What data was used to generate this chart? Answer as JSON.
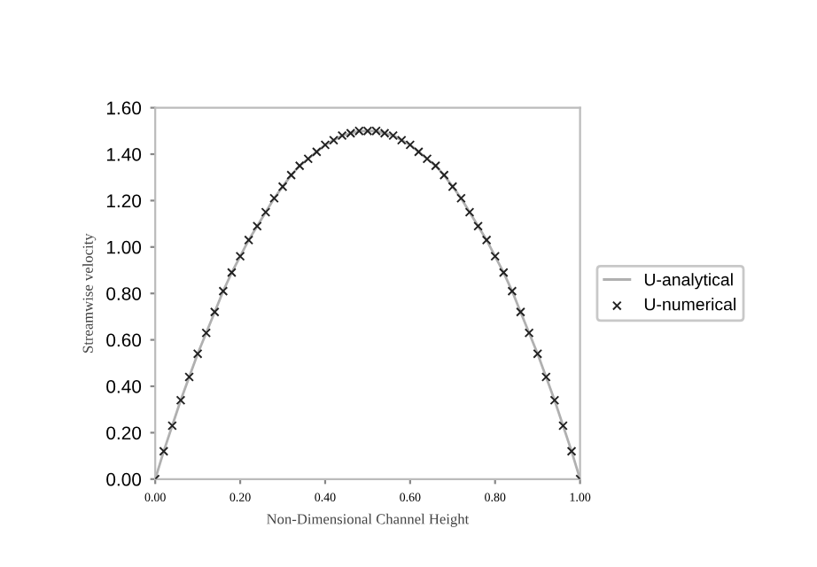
{
  "chart_data": {
    "type": "line",
    "xlabel": "Non-Dimensional Channel Height",
    "ylabel": "Streamwise velocity",
    "x": [
      0,
      0.02,
      0.04,
      0.06,
      0.08,
      0.1,
      0.12,
      0.14,
      0.16,
      0.18,
      0.2,
      0.22,
      0.24,
      0.26,
      0.28,
      0.3,
      0.32,
      0.34,
      0.36,
      0.38,
      0.4,
      0.42,
      0.44,
      0.46,
      0.48,
      0.5,
      0.52,
      0.54,
      0.56,
      0.58,
      0.6,
      0.62,
      0.64,
      0.66,
      0.68,
      0.7,
      0.72,
      0.74,
      0.76,
      0.78,
      0.8,
      0.82,
      0.84,
      0.86,
      0.88,
      0.9,
      0.92,
      0.94,
      0.96,
      0.98,
      1.0
    ],
    "series": [
      {
        "name": "U-analytical",
        "color": "#b0b0b0",
        "marker": "none",
        "values": [
          0,
          0.12,
          0.23,
          0.34,
          0.44,
          0.54,
          0.63,
          0.72,
          0.81,
          0.89,
          0.96,
          1.03,
          1.09,
          1.15,
          1.21,
          1.26,
          1.31,
          1.35,
          1.38,
          1.41,
          1.44,
          1.46,
          1.48,
          1.49,
          1.5,
          1.5,
          1.5,
          1.49,
          1.48,
          1.46,
          1.44,
          1.41,
          1.38,
          1.35,
          1.31,
          1.26,
          1.21,
          1.15,
          1.09,
          1.03,
          0.96,
          0.89,
          0.81,
          0.72,
          0.63,
          0.54,
          0.44,
          0.34,
          0.23,
          0.12,
          0
        ]
      },
      {
        "name": "U-numerical",
        "type": "scatter",
        "color": "#222222",
        "marker": "cross",
        "values": [
          0,
          0.12,
          0.23,
          0.34,
          0.44,
          0.54,
          0.63,
          0.72,
          0.81,
          0.89,
          0.96,
          1.03,
          1.09,
          1.15,
          1.21,
          1.26,
          1.31,
          1.35,
          1.38,
          1.41,
          1.44,
          1.46,
          1.48,
          1.49,
          1.5,
          1.5,
          1.5,
          1.49,
          1.48,
          1.46,
          1.44,
          1.41,
          1.38,
          1.35,
          1.31,
          1.26,
          1.21,
          1.15,
          1.09,
          1.03,
          0.96,
          0.89,
          0.81,
          0.72,
          0.63,
          0.54,
          0.44,
          0.34,
          0.23,
          0.12,
          0
        ]
      }
    ],
    "xlim": [
      0,
      1
    ],
    "xticks": [
      {
        "value": 0,
        "label": "0.00"
      },
      {
        "value": 0.2,
        "label": "0.20"
      },
      {
        "value": 0.4,
        "label": "0.40"
      },
      {
        "value": 0.6,
        "label": "0.60"
      },
      {
        "value": 0.8,
        "label": "0.80"
      },
      {
        "value": 1,
        "label": "1.00"
      }
    ],
    "ylim": [
      0,
      1.6
    ],
    "yticks": [
      {
        "value": 0,
        "label": "0.00"
      },
      {
        "value": 0.2,
        "label": "0.20"
      },
      {
        "value": 0.4,
        "label": "0.40"
      },
      {
        "value": 0.6,
        "label": "0.60"
      },
      {
        "value": 0.8,
        "label": "0.80"
      },
      {
        "value": 1.0,
        "label": "1.00"
      },
      {
        "value": 1.2,
        "label": "1.20"
      },
      {
        "value": 1.4,
        "label": "1.40"
      },
      {
        "value": 1.6,
        "label": "1.60"
      }
    ],
    "grid": false,
    "legend": "right"
  }
}
